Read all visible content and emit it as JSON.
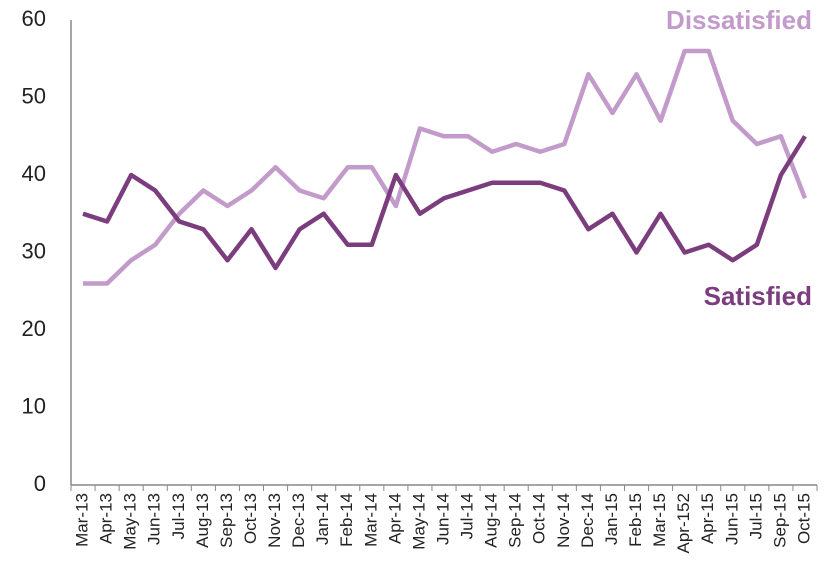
{
  "chart_data": {
    "type": "line",
    "categories": [
      "Mar-13",
      "Apr-13",
      "May-13",
      "Jun-13",
      "Jul-13",
      "Aug-13",
      "Sep-13",
      "Oct-13",
      "Nov-13",
      "Dec-13",
      "Jan-14",
      "Feb-14",
      "Mar-14",
      "Apr-14",
      "May-14",
      "Jun-14",
      "Jul-14",
      "Aug-14",
      "Sep-14",
      "Oct-14",
      "Nov-14",
      "Dec-14",
      "Jan-15",
      "Feb-15",
      "Mar-15",
      "Apr-152",
      "Apr-15",
      "Jun-15",
      "Jul-15",
      "Sep-15",
      "Oct-15"
    ],
    "series": [
      {
        "name": "Dissatisfied",
        "color": "#c29bcb",
        "values": [
          26,
          26,
          29,
          31,
          35,
          38,
          36,
          38,
          41,
          38,
          37,
          41,
          41,
          36,
          46,
          45,
          45,
          43,
          44,
          43,
          44,
          53,
          48,
          53,
          47,
          56,
          56,
          47,
          44,
          45,
          37
        ]
      },
      {
        "name": "Satisfied",
        "color": "#7b3d7d",
        "values": [
          35,
          34,
          40,
          38,
          34,
          33,
          29,
          33,
          28,
          33,
          35,
          31,
          31,
          40,
          35,
          37,
          38,
          39,
          39,
          39,
          38,
          33,
          35,
          30,
          35,
          30,
          31,
          29,
          31,
          40,
          45
        ]
      }
    ],
    "ylim": [
      0,
      60
    ],
    "yticks": [
      0,
      10,
      20,
      30,
      40,
      50,
      60
    ],
    "grid": false
  }
}
